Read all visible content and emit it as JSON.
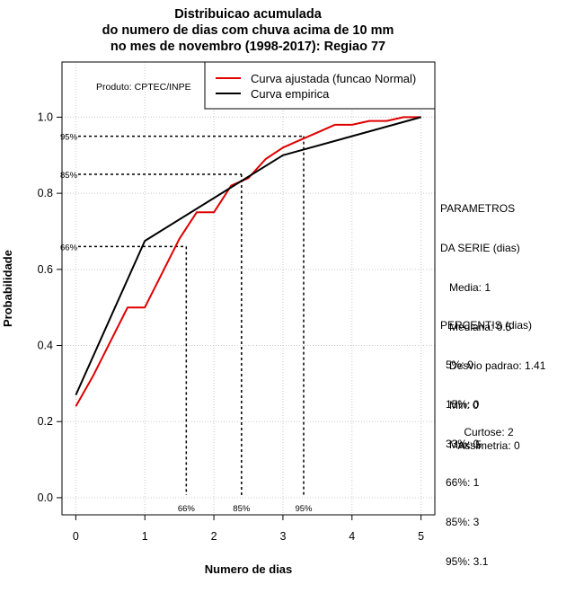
{
  "chart_data": {
    "type": "line",
    "title_lines": [
      "Distribuicao acumulada",
      "do numero de dias com chuva acima de 10 mm",
      "no mes de novembro (1998-2017): Regiao 77"
    ],
    "xlabel": "Numero de dias",
    "ylabel": "Probabilidade",
    "xlim": [
      -0.2,
      5.2
    ],
    "ylim": [
      -0.045,
      1.145
    ],
    "xticks": [
      "0",
      "1",
      "2",
      "3",
      "4",
      "5"
    ],
    "yticks": [
      "0.0",
      "0.2",
      "0.4",
      "0.6",
      "0.8",
      "1.0"
    ],
    "grid": true,
    "product_label": "Produto: CPTEC/INPE",
    "legend": {
      "position": "top-right",
      "entries": [
        {
          "label": "Curva ajustada (funcao Normal)",
          "color": "#e00000"
        },
        {
          "label": "Curva empirica",
          "color": "#000000"
        }
      ]
    },
    "series": [
      {
        "name": "Curva ajustada (funcao Normal)",
        "color": "#e00000",
        "x": [
          0,
          0.25,
          0.5,
          0.75,
          1,
          1.25,
          1.5,
          1.75,
          2,
          2.25,
          2.5,
          2.75,
          3,
          3.25,
          3.5,
          3.75,
          4,
          4.25,
          4.5,
          4.75,
          5
        ],
        "y": [
          0.24,
          0.32,
          0.41,
          0.5,
          0.5,
          0.59,
          0.68,
          0.75,
          0.75,
          0.82,
          0.84,
          0.89,
          0.92,
          0.94,
          0.96,
          0.98,
          0.98,
          0.99,
          0.99,
          1.0,
          1.0
        ]
      },
      {
        "name": "Curva empirica",
        "color": "#000000",
        "x": [
          0,
          1,
          3,
          5
        ],
        "y": [
          0.27,
          0.675,
          0.9,
          1.0
        ]
      }
    ],
    "percentile_markers": [
      {
        "label": "66%",
        "x": 1.6,
        "y": 0.66
      },
      {
        "label": "85%",
        "x": 2.4,
        "y": 0.85
      },
      {
        "label": "95%",
        "x": 3.3,
        "y": 0.95
      }
    ]
  },
  "side_panel": {
    "params_title_1": "PARAMETROS",
    "params_title_2": "DA SERIE (dias)",
    "params": [
      "Media: 1",
      "Mediana: 0.5",
      "Desvio padrao: 1.41",
      "Min: 0",
      "Max: 5"
    ],
    "percentis_title": "PERCENTIS (dias)",
    "percentis": [
      "5%: 0",
      "15%: 0",
      "33%: 0",
      "66%: 1",
      "85%: 3",
      "95%: 3.1"
    ],
    "curtose": "Curtose: 2",
    "assimetria": "Assimetria: 0"
  }
}
